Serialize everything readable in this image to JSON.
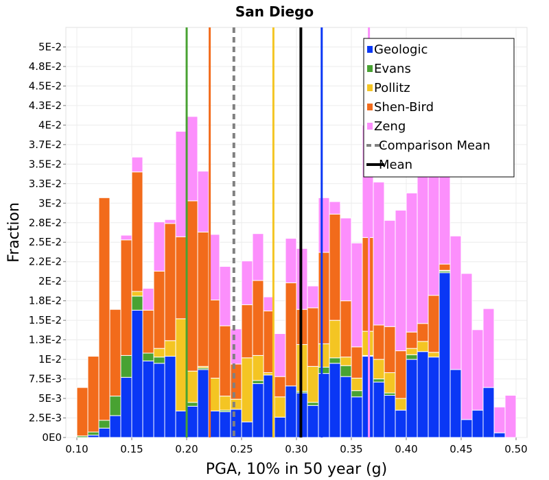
{
  "chart_data": {
    "type": "bar",
    "stacked": true,
    "title": "San Diego",
    "xlabel": "PGA, 10% in 50 year (g)",
    "ylabel": "Fraction",
    "xlim": [
      0.09,
      0.51
    ],
    "ylim": [
      0,
      0.0525
    ],
    "bin_width": 0.01,
    "x_ticks": [
      0.1,
      0.15,
      0.2,
      0.25,
      0.3,
      0.35,
      0.4,
      0.45,
      0.5
    ],
    "x_tick_labels": [
      "0.10",
      "0.15",
      "0.20",
      "0.25",
      "0.30",
      "0.35",
      "0.40",
      "0.45",
      "0.50"
    ],
    "y_ticks": [
      0,
      0.0025,
      0.005,
      0.0075,
      0.01,
      0.0125,
      0.015,
      0.0175,
      0.02,
      0.0225,
      0.025,
      0.0275,
      0.03,
      0.0325,
      0.035,
      0.0375,
      0.04,
      0.0425,
      0.045,
      0.0475,
      0.05
    ],
    "y_tick_labels": [
      "0E0",
      "2.5E-3",
      "5E-3",
      "7.5E-3",
      "1E-2",
      "1.3E-2",
      "1.5E-2",
      "1.8E-2",
      "2E-2",
      "2.2E-2",
      "2.5E-2",
      "2.8E-2",
      "3E-2",
      "3.3E-2",
      "3.5E-2",
      "3.7E-2",
      "4E-2",
      "4.3E-2",
      "4.5E-2",
      "4.8E-2",
      "5E-2"
    ],
    "bin_centers": [
      0.095,
      0.105,
      0.115,
      0.125,
      0.135,
      0.145,
      0.155,
      0.165,
      0.175,
      0.185,
      0.195,
      0.205,
      0.215,
      0.225,
      0.235,
      0.245,
      0.255,
      0.265,
      0.275,
      0.285,
      0.295,
      0.305,
      0.315,
      0.325,
      0.335,
      0.345,
      0.355,
      0.365,
      0.375,
      0.385,
      0.395,
      0.405,
      0.415,
      0.425,
      0.435,
      0.445,
      0.455,
      0.465,
      0.475,
      0.485,
      0.495,
      0.505
    ],
    "series": [
      {
        "name": "Geologic",
        "color": "#0a37f5",
        "values": [
          0,
          0,
          0.0003,
          0.0012,
          0.0028,
          0.0077,
          0.0163,
          0.0098,
          0.0095,
          0.0104,
          0.0034,
          0.004,
          0.0087,
          0.0034,
          0.0033,
          0.0036,
          0.002,
          0.0069,
          0.008,
          0.0026,
          0.0066,
          0.0057,
          0.0041,
          0.0082,
          0.0095,
          0.0078,
          0.0052,
          0.0104,
          0.0071,
          0.0054,
          0.0035,
          0.01,
          0.011,
          0.0103,
          0.0211,
          0.0087,
          0.0023,
          0.0035,
          0.0064,
          0.0006,
          0,
          0
        ]
      },
      {
        "name": "Evans",
        "color": "#48a232",
        "values": [
          0,
          0.0002,
          0.0004,
          0.001,
          0.0025,
          0.0028,
          0.0018,
          0.001,
          0.0008,
          0,
          0,
          0.0005,
          0.0002,
          0,
          0.0002,
          0,
          0,
          0.0004,
          0,
          0,
          0,
          0.0002,
          0.0004,
          0.0008,
          0.0007,
          0.0014,
          0.0008,
          0.0001,
          0.0004,
          0.0003,
          0,
          0.0006,
          0,
          0,
          0.0002,
          0,
          0,
          0,
          0,
          0,
          0,
          0
        ]
      },
      {
        "name": "Pollitz",
        "color": "#f4c523",
        "values": [
          0,
          0,
          0,
          0,
          0,
          0,
          0.0006,
          0,
          0.0011,
          0.002,
          0.0118,
          0.004,
          0.0002,
          0.0042,
          0.0018,
          0.0013,
          0.0082,
          0.0032,
          0.0003,
          0.0026,
          0,
          0.006,
          0.0046,
          0.003,
          0.0048,
          0.0011,
          0.0016,
          0.0031,
          0.0025,
          0.0026,
          0.0015,
          0.0008,
          0.0013,
          0.0006,
          0.0001,
          0,
          0,
          0,
          0,
          0,
          0,
          0
        ]
      },
      {
        "name": "Shen-Bird",
        "color": "#f26b1b",
        "values": [
          0,
          0.0062,
          0.0097,
          0.0285,
          0.0111,
          0.0148,
          0.0153,
          0.0055,
          0.0099,
          0.015,
          0.0105,
          0.0218,
          0.0172,
          0.01,
          0.009,
          0.0045,
          0.0068,
          0.0096,
          0.0079,
          0.0026,
          0.0132,
          0.0045,
          0.0075,
          0.0117,
          0.0136,
          0.0072,
          0.004,
          0.012,
          0.0044,
          0.0059,
          0.0061,
          0.0021,
          0.0023,
          0.0073,
          0.0008,
          0,
          0,
          0,
          0,
          0,
          0,
          0
        ]
      },
      {
        "name": "Zeng",
        "color": "#fc8ffc",
        "values": [
          0,
          0,
          0,
          0,
          0,
          0.0006,
          0.0019,
          0.0028,
          0.0063,
          0.0005,
          0.0135,
          0.0108,
          0.0078,
          0.0084,
          0.0076,
          0.0045,
          0.0056,
          0.006,
          0.0018,
          0.0055,
          0.0057,
          0.0078,
          0.0028,
          0.007,
          0.0016,
          0.0106,
          0.0133,
          0.0144,
          0.0183,
          0.0136,
          0.018,
          0.0178,
          0.0194,
          0.0201,
          0.0169,
          0.0171,
          0.0187,
          0.0103,
          0.0101,
          0.0033,
          0.0054,
          0
        ]
      }
    ],
    "vertical_lines": [
      {
        "label": "Evans",
        "x": 0.2,
        "color": "#48a232",
        "style": "solid"
      },
      {
        "label": "Shen-Bird",
        "x": 0.221,
        "color": "#f26b1b",
        "style": "solid"
      },
      {
        "label": "Comparison Mean",
        "x": 0.243,
        "color": "#808080",
        "style": "dashed"
      },
      {
        "label": "Pollitz",
        "x": 0.279,
        "color": "#f4c523",
        "style": "solid"
      },
      {
        "label": "Mean",
        "x": 0.304,
        "color": "#000000",
        "style": "solid"
      },
      {
        "label": "Geologic",
        "x": 0.323,
        "color": "#0a37f5",
        "style": "solid"
      },
      {
        "label": "Zeng",
        "x": 0.366,
        "color": "#fc8ffc",
        "style": "solid"
      }
    ],
    "legend": {
      "placement": "top-right",
      "entries": [
        {
          "label": "Geologic",
          "color": "#0a37f5",
          "kind": "box"
        },
        {
          "label": "Evans",
          "color": "#48a232",
          "kind": "box"
        },
        {
          "label": "Pollitz",
          "color": "#f4c523",
          "kind": "box"
        },
        {
          "label": "Shen-Bird",
          "color": "#f26b1b",
          "kind": "box"
        },
        {
          "label": "Zeng",
          "color": "#fc8ffc",
          "kind": "box"
        },
        {
          "label": "Comparison Mean",
          "color": "#808080",
          "kind": "dashed-line"
        },
        {
          "label": "Mean",
          "color": "#000000",
          "kind": "line"
        }
      ]
    },
    "grid": true
  }
}
